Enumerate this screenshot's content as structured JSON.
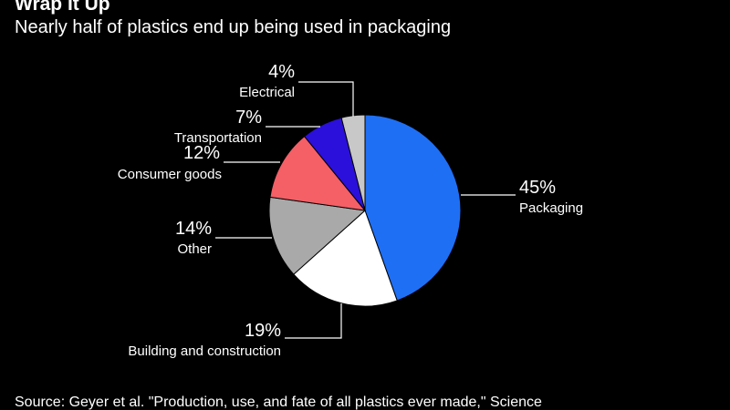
{
  "header": {
    "title": "Wrap It Up",
    "subtitle": "Nearly half of plastics end up being used in packaging"
  },
  "footer": {
    "source": "Source: Geyer et al. \"Production, use, and fate of all plastics ever made,\" Science"
  },
  "chart_data": {
    "type": "pie",
    "unit": "%",
    "start": "12 o'clock, clockwise",
    "slices": [
      {
        "label": "Packaging",
        "value": 45,
        "value_label": "45%",
        "color": "#1f6ff5"
      },
      {
        "label": "Building and construction",
        "value": 19,
        "value_label": "19%",
        "color": "#ffffff"
      },
      {
        "label": "Other",
        "value": 14,
        "value_label": "14%",
        "color": "#a9a9a9"
      },
      {
        "label": "Consumer goods",
        "value": 12,
        "value_label": "12%",
        "color": "#f55f66"
      },
      {
        "label": "Transportation",
        "value": 7,
        "value_label": "7%",
        "color": "#2b10dc"
      },
      {
        "label": "Electrical",
        "value": 4,
        "value_label": "4%",
        "color": "#c8c8c8"
      }
    ],
    "slice_border_color": "#000000",
    "leader_line_color": "#ffffff",
    "legend": "none (direct labels)"
  }
}
